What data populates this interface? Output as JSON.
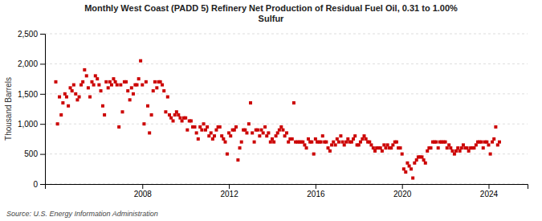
{
  "chart_data": {
    "type": "scatter",
    "title": "Monthly West Coast (PADD 5) Refinery Net Production of Residual Fuel Oil, 0.31 to 1.00%\nSulfur",
    "ylabel": "Thousand Barrels",
    "source": "Source: U.S. Energy Information Administration",
    "color": "#cc0000",
    "marker": "square",
    "grid": true,
    "xlim": [
      2003.5,
      2025.8
    ],
    "xticks": [
      2008,
      2012,
      2016,
      2020,
      2024
    ],
    "ylim": [
      0,
      2500
    ],
    "yticks": [
      0,
      500,
      {
        "value": 1000,
        "label": "1,000"
      },
      {
        "value": 1500,
        "label": "1,500"
      },
      {
        "value": 2000,
        "label": "2,000"
      },
      {
        "value": 2500,
        "label": "2,500"
      }
    ],
    "x": [
      2004.0,
      2004.08,
      2004.17,
      2004.25,
      2004.33,
      2004.42,
      2004.5,
      2004.58,
      2004.67,
      2004.75,
      2004.83,
      2004.92,
      2005.0,
      2005.08,
      2005.17,
      2005.25,
      2005.33,
      2005.42,
      2005.5,
      2005.58,
      2005.67,
      2005.75,
      2005.83,
      2005.92,
      2006.0,
      2006.08,
      2006.17,
      2006.25,
      2006.33,
      2006.42,
      2006.5,
      2006.58,
      2006.67,
      2006.75,
      2006.83,
      2006.92,
      2007.0,
      2007.08,
      2007.17,
      2007.25,
      2007.33,
      2007.42,
      2007.5,
      2007.58,
      2007.67,
      2007.75,
      2007.83,
      2007.92,
      2008.0,
      2008.08,
      2008.17,
      2008.25,
      2008.33,
      2008.42,
      2008.5,
      2008.58,
      2008.67,
      2008.75,
      2008.83,
      2008.92,
      2009.0,
      2009.08,
      2009.17,
      2009.25,
      2009.33,
      2009.42,
      2009.5,
      2009.58,
      2009.67,
      2009.75,
      2009.83,
      2009.92,
      2010.0,
      2010.08,
      2010.17,
      2010.25,
      2010.33,
      2010.42,
      2010.5,
      2010.58,
      2010.67,
      2010.75,
      2010.83,
      2010.92,
      2011.0,
      2011.08,
      2011.17,
      2011.25,
      2011.33,
      2011.42,
      2011.5,
      2011.58,
      2011.67,
      2011.75,
      2011.83,
      2011.92,
      2012.0,
      2012.08,
      2012.17,
      2012.25,
      2012.33,
      2012.42,
      2012.5,
      2012.58,
      2012.67,
      2012.75,
      2012.83,
      2012.92,
      2013.0,
      2013.08,
      2013.17,
      2013.25,
      2013.33,
      2013.42,
      2013.5,
      2013.58,
      2013.67,
      2013.75,
      2013.83,
      2013.92,
      2014.0,
      2014.08,
      2014.17,
      2014.25,
      2014.33,
      2014.42,
      2014.5,
      2014.58,
      2014.67,
      2014.75,
      2014.83,
      2014.92,
      2015.0,
      2015.08,
      2015.17,
      2015.25,
      2015.33,
      2015.42,
      2015.5,
      2015.58,
      2015.67,
      2015.75,
      2015.83,
      2015.92,
      2016.0,
      2016.08,
      2016.17,
      2016.25,
      2016.33,
      2016.42,
      2016.5,
      2016.58,
      2016.67,
      2016.75,
      2016.83,
      2016.92,
      2017.0,
      2017.08,
      2017.17,
      2017.25,
      2017.33,
      2017.42,
      2017.5,
      2017.58,
      2017.67,
      2017.75,
      2017.83,
      2017.92,
      2018.0,
      2018.08,
      2018.17,
      2018.25,
      2018.33,
      2018.42,
      2018.5,
      2018.58,
      2018.67,
      2018.75,
      2018.83,
      2018.92,
      2019.0,
      2019.08,
      2019.17,
      2019.25,
      2019.33,
      2019.42,
      2019.5,
      2019.58,
      2019.67,
      2019.75,
      2019.83,
      2019.92,
      2020.0,
      2020.08,
      2020.17,
      2020.25,
      2020.33,
      2020.42,
      2020.5,
      2020.58,
      2020.67,
      2020.75,
      2020.83,
      2020.92,
      2021.0,
      2021.08,
      2021.17,
      2021.25,
      2021.33,
      2021.42,
      2021.5,
      2021.58,
      2021.67,
      2021.75,
      2021.83,
      2021.92,
      2022.0,
      2022.08,
      2022.17,
      2022.25,
      2022.33,
      2022.42,
      2022.5,
      2022.58,
      2022.67,
      2022.75,
      2022.83,
      2022.92,
      2023.0,
      2023.08,
      2023.17,
      2023.25,
      2023.33,
      2023.42,
      2023.5,
      2023.58,
      2023.67,
      2023.75,
      2023.83,
      2023.92,
      2024.0,
      2024.08,
      2024.17,
      2024.25,
      2024.33,
      2024.42,
      2024.5
    ],
    "values": [
      1700,
      1000,
      1450,
      1150,
      1350,
      1500,
      1450,
      1300,
      1600,
      1550,
      1650,
      1500,
      1400,
      1450,
      1650,
      1700,
      1900,
      1800,
      1600,
      1450,
      1700,
      1650,
      1800,
      1750,
      1650,
      1550,
      1300,
      1150,
      1700,
      1600,
      1700,
      1650,
      1750,
      1700,
      1650,
      950,
      1650,
      1200,
      1700,
      1700,
      1550,
      1400,
      1600,
      1500,
      1650,
      1650,
      1750,
      2050,
      1650,
      1000,
      1700,
      1300,
      850,
      1150,
      1550,
      1700,
      1600,
      1700,
      1700,
      1650,
      1550,
      1200,
      1450,
      1150,
      1100,
      1050,
      1150,
      1200,
      1150,
      1100,
      1050,
      1100,
      1100,
      900,
      1050,
      1050,
      950,
      950,
      850,
      750,
      950,
      900,
      1000,
      900,
      950,
      800,
      850,
      750,
      800,
      900,
      950,
      950,
      800,
      750,
      700,
      500,
      850,
      800,
      900,
      900,
      950,
      400,
      600,
      700,
      900,
      900,
      850,
      1000,
      1350,
      850,
      700,
      900,
      900,
      800,
      900,
      850,
      950,
      800,
      850,
      700,
      750,
      700,
      800,
      850,
      900,
      950,
      900,
      800,
      850,
      700,
      750,
      750,
      1350,
      700,
      700,
      700,
      700,
      700,
      650,
      600,
      750,
      700,
      700,
      500,
      750,
      700,
      700,
      700,
      800,
      700,
      700,
      600,
      550,
      650,
      700,
      650,
      750,
      700,
      800,
      700,
      650,
      700,
      750,
      700,
      700,
      750,
      800,
      650,
      650,
      700,
      750,
      800,
      750,
      700,
      700,
      650,
      600,
      550,
      600,
      600,
      600,
      550,
      650,
      600,
      650,
      600,
      600,
      650,
      700,
      700,
      600,
      600,
      500,
      250,
      200,
      350,
      300,
      250,
      100,
      350,
      400,
      450,
      450,
      450,
      400,
      350,
      550,
      600,
      600,
      700,
      700,
      700,
      600,
      700,
      700,
      700,
      700,
      600,
      650,
      600,
      550,
      500,
      550,
      600,
      550,
      600,
      650,
      600,
      600,
      550,
      600,
      600,
      600,
      650,
      700,
      700,
      700,
      600,
      700,
      700,
      650,
      500,
      700,
      750,
      950,
      650,
      700
    ]
  }
}
